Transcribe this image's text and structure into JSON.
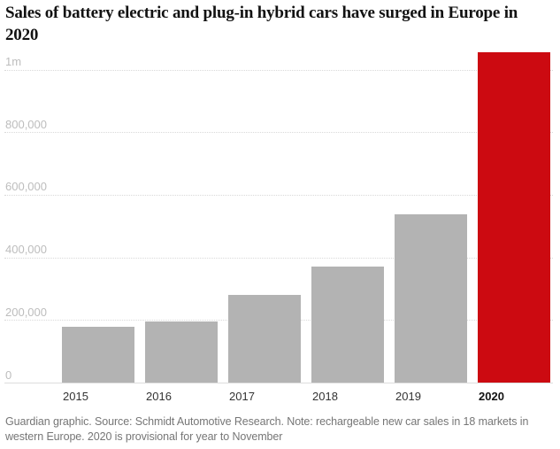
{
  "title": {
    "lines": [
      "Sales of battery electric and plug-in hybrid cars have surged in Europe in",
      "2020"
    ]
  },
  "footer": "Guardian graphic. Source: Schmidt Automotive Research. Note: rechargeable new car sales in 18 markets in western Europe. 2020 is provisional for year to November",
  "colors": {
    "bar_default": "#b3b3b3",
    "bar_highlight": "#cc0a11",
    "gridline": "#d9d9d9",
    "baseline": "#dcdcdc",
    "tick_label": "#bdbdbd",
    "axis_label": "#333333",
    "axis_label_highlight": "#121212",
    "title": "#121212",
    "footer": "#767676"
  },
  "chart_data": {
    "type": "bar",
    "title": "Sales of battery electric and plug-in hybrid cars have surged in Europe in 2020",
    "categories": [
      "2015",
      "2016",
      "2017",
      "2018",
      "2019",
      "2020"
    ],
    "values": [
      180000,
      198000,
      282000,
      373000,
      540000,
      1057000
    ],
    "highlight_category": "2020",
    "xlabel": "",
    "ylabel": "",
    "ylim": [
      0,
      1060000
    ],
    "y_ticks": [
      {
        "label": "0",
        "value": 0
      },
      {
        "label": "200,000",
        "value": 200000
      },
      {
        "label": "400,000",
        "value": 400000
      },
      {
        "label": "600,000",
        "value": 600000
      },
      {
        "label": "800,000",
        "value": 800000
      },
      {
        "label": "1m",
        "value": 1000000
      }
    ],
    "grid": "horizontal-dotted",
    "legend": false
  }
}
